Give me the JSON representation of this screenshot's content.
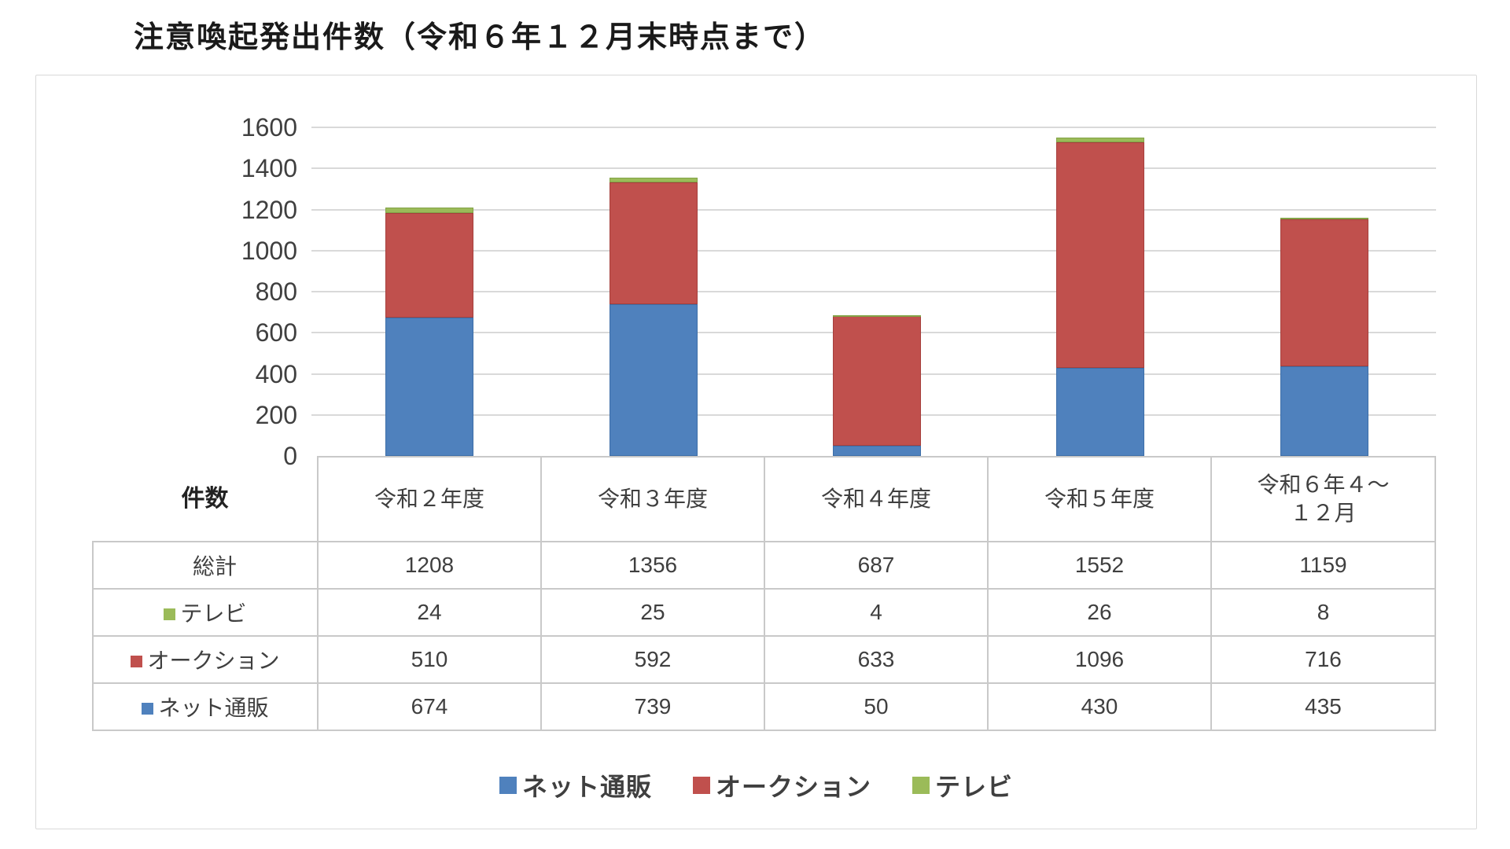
{
  "title": "注意喚起発出件数（令和６年１２月末時点まで）",
  "chart_data": {
    "type": "bar",
    "stacked": true,
    "title": "注意喚起発出件数（令和６年１２月末時点まで）",
    "categories": [
      "令和２年度",
      "令和３年度",
      "令和４年度",
      "令和５年度",
      "令和６年４～１２月"
    ],
    "category_display": [
      "令和２年度",
      "令和３年度",
      "令和４年度",
      "令和５年度",
      "令和６年４～\n１２月"
    ],
    "series": [
      {
        "name": "ネット通販",
        "color": "#4f81bd",
        "border_color": "#3d6ea8",
        "values": [
          674,
          739,
          50,
          430,
          435
        ]
      },
      {
        "name": "オークション",
        "color": "#c0504d",
        "border_color": "#a6403d",
        "values": [
          510,
          592,
          633,
          1096,
          716
        ]
      },
      {
        "name": "テレビ",
        "color": "#9bbb59",
        "border_color": "#83a347",
        "values": [
          24,
          25,
          4,
          26,
          8
        ]
      }
    ],
    "totals_row": {
      "label": "総計",
      "values": [
        1208,
        1356,
        687,
        1552,
        1159
      ]
    },
    "corner_label": "件数",
    "table_row_order": [
      "総計",
      "テレビ",
      "オークション",
      "ネット通販"
    ],
    "ylim": [
      0,
      1600
    ],
    "yticks": [
      0,
      200,
      400,
      600,
      800,
      1000,
      1200,
      1400,
      1600
    ],
    "grid": true,
    "legend": [
      "ネット通販",
      "オークション",
      "テレビ"
    ],
    "legend_position": "bottom"
  },
  "colors": {
    "grid_line": "#d9d9d9",
    "table_border": "#c9c9c9",
    "text": "#3f3f3f",
    "title_text": "#1a1a1a",
    "panel_border": "#d9d9d9",
    "panel_bg": "#ffffff"
  }
}
